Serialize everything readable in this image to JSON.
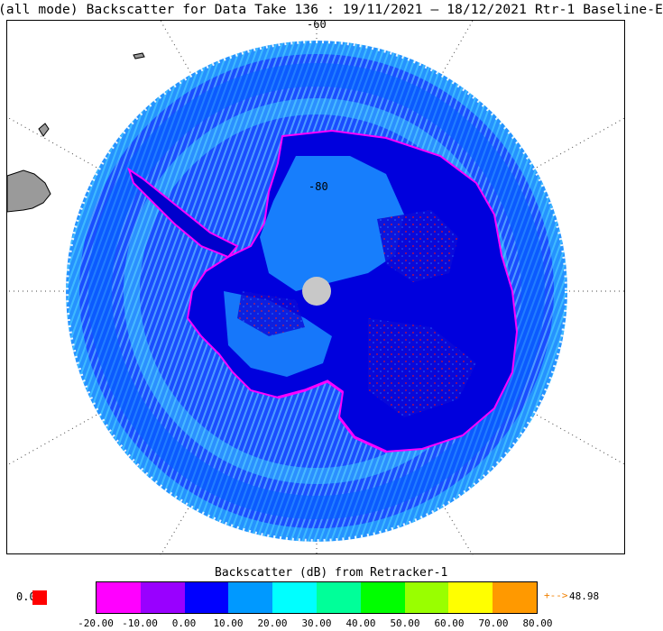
{
  "title": "(all mode) Backscatter for Data Take 136 : 19/11/2021 – 18/12/2021 Rtr-1 Baseline-E",
  "map": {
    "lat_labels": {
      "outer": "-60",
      "inner": "-80"
    },
    "pole_hole_label": "",
    "features": [
      "antarctica",
      "antarctic-peninsula",
      "south-america-tip",
      "pole-hole",
      "graticule"
    ]
  },
  "colorbar": {
    "title": "Backscatter (dB) from Retracker-1",
    "colors": [
      "#ff00ff",
      "#9900ff",
      "#0000ff",
      "#0099ff",
      "#00ffff",
      "#00ff99",
      "#00ff00",
      "#99ff00",
      "#ffff00",
      "#ff9900"
    ],
    "ticks": [
      "-20.00",
      "-10.00",
      "0.00",
      "10.00",
      "20.00",
      "30.00",
      "40.00",
      "50.00",
      "60.00",
      "70.00",
      "80.00"
    ],
    "below_value": "0.0",
    "below_color": "#ff0000",
    "above_marker": "+-->",
    "above_value": "48.98"
  }
}
